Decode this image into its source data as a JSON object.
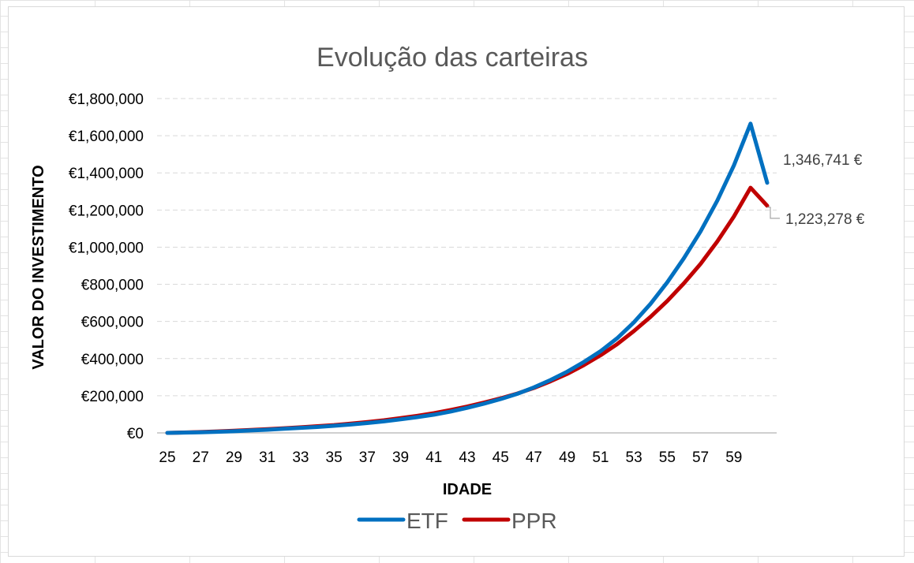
{
  "chart_data": {
    "type": "line",
    "title": "Evolução das carteiras",
    "xlabel": "IDADE",
    "ylabel": "VALOR DO INVESTIMENTO",
    "ylim": [
      0,
      1800000
    ],
    "yticks": [
      "€0",
      "€200,000",
      "€400,000",
      "€600,000",
      "€800,000",
      "€1,000,000",
      "€1,200,000",
      "€1,400,000",
      "€1,600,000",
      "€1,800,000"
    ],
    "x": [
      25,
      26,
      27,
      28,
      29,
      30,
      31,
      32,
      33,
      34,
      35,
      36,
      37,
      38,
      39,
      40,
      41,
      42,
      43,
      44,
      45,
      46,
      47,
      48,
      49,
      50,
      51,
      52,
      53,
      54,
      55,
      56,
      57,
      58,
      59,
      60,
      61
    ],
    "xticks": [
      "25",
      "27",
      "29",
      "31",
      "33",
      "35",
      "37",
      "39",
      "41",
      "43",
      "45",
      "47",
      "49",
      "51",
      "53",
      "55",
      "57",
      "59"
    ],
    "grid": true,
    "legend_position": "bottom",
    "series": [
      {
        "name": "ETF",
        "color": "#0070C0",
        "values": [
          0,
          1500,
          3500,
          6000,
          9000,
          13000,
          17000,
          22000,
          27000,
          32000,
          38000,
          45000,
          53000,
          62000,
          73000,
          85000,
          98000,
          115000,
          135000,
          157000,
          182000,
          210000,
          245000,
          285000,
          330000,
          382000,
          440000,
          510000,
          595000,
          695000,
          810000,
          940000,
          1085000,
          1250000,
          1440000,
          1665000,
          1346741
        ],
        "end_label": "1,346,741 €"
      },
      {
        "name": "PPR",
        "color": "#C00000",
        "values": [
          0,
          2000,
          4500,
          8000,
          12000,
          16000,
          20000,
          25000,
          30000,
          36000,
          42000,
          50000,
          58000,
          68000,
          80000,
          92000,
          106000,
          123000,
          142000,
          163000,
          186000,
          212000,
          242000,
          278000,
          318000,
          365000,
          418000,
          478000,
          548000,
          625000,
          710000,
          805000,
          910000,
          1030000,
          1165000,
          1320000,
          1223278
        ],
        "end_label": "1,223,278 €"
      }
    ]
  }
}
